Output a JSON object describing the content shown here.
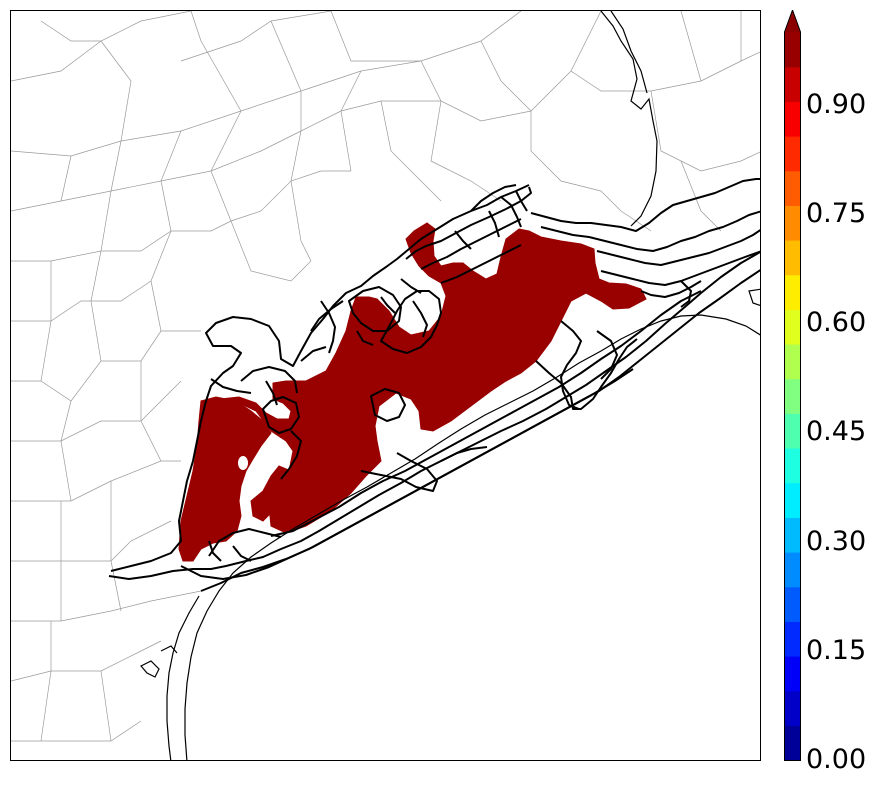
{
  "colorbar": {
    "tick_labels": [
      "0.00",
      "0.15",
      "0.30",
      "0.45",
      "0.60",
      "0.75",
      "0.90"
    ],
    "ticks": [
      0.0,
      0.15,
      0.3,
      0.45,
      0.6,
      0.75,
      0.9
    ],
    "range": [
      0.0,
      1.0
    ],
    "extend": "max",
    "colormap": "jet",
    "levels": 21,
    "extend_color": "#8b0000"
  },
  "map": {
    "region": "Texas Gulf Coast counties",
    "fill_color": "#990000",
    "outline_color": "#000000",
    "county_line_color": "#999999"
  }
}
